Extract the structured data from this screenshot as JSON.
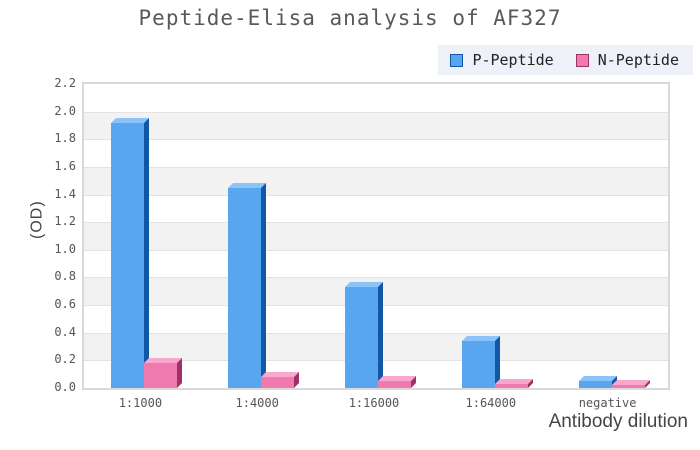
{
  "title": "Peptide-Elisa analysis of AF327",
  "axes": {
    "xlabel": "Antibody dilution",
    "ylabel": "(OD)"
  },
  "legend": {
    "position": "top-right",
    "background": "#eef1f7",
    "items": [
      {
        "label": "P-Peptide",
        "color": "#58a5f0"
      },
      {
        "label": "N-Peptide",
        "color": "#f07ab0"
      }
    ]
  },
  "chart_data": {
    "type": "bar",
    "style": "3d-bars",
    "title": "Peptide-Elisa analysis of AF327",
    "categories": [
      "1:1000",
      "1:4000",
      "1:16000",
      "1:64000",
      "negative"
    ],
    "series": [
      {
        "name": "P-Peptide",
        "values": [
          1.92,
          1.45,
          0.73,
          0.34,
          0.05
        ],
        "color": "#58a5f0",
        "color_top": "#8cc3f8",
        "color_side": "#1057a8"
      },
      {
        "name": "N-Peptide",
        "values": [
          0.18,
          0.08,
          0.05,
          0.03,
          0.02
        ],
        "color": "#f07ab0",
        "color_top": "#f8a8cc",
        "color_side": "#a03068"
      }
    ],
    "xlabel": "Antibody dilution",
    "ylabel": "(OD)",
    "ylim": [
      0,
      2.2
    ],
    "ytick_step": 0.2,
    "yticks": [
      "0.0",
      "0.2",
      "0.4",
      "0.6",
      "0.8",
      "1.0",
      "1.2",
      "1.4",
      "1.6",
      "1.8",
      "2.0",
      "2.2"
    ],
    "grid": "horizontal-bands",
    "band_colors": [
      "#ffffff",
      "#f2f2f2"
    ],
    "legend_position": "top-right"
  }
}
